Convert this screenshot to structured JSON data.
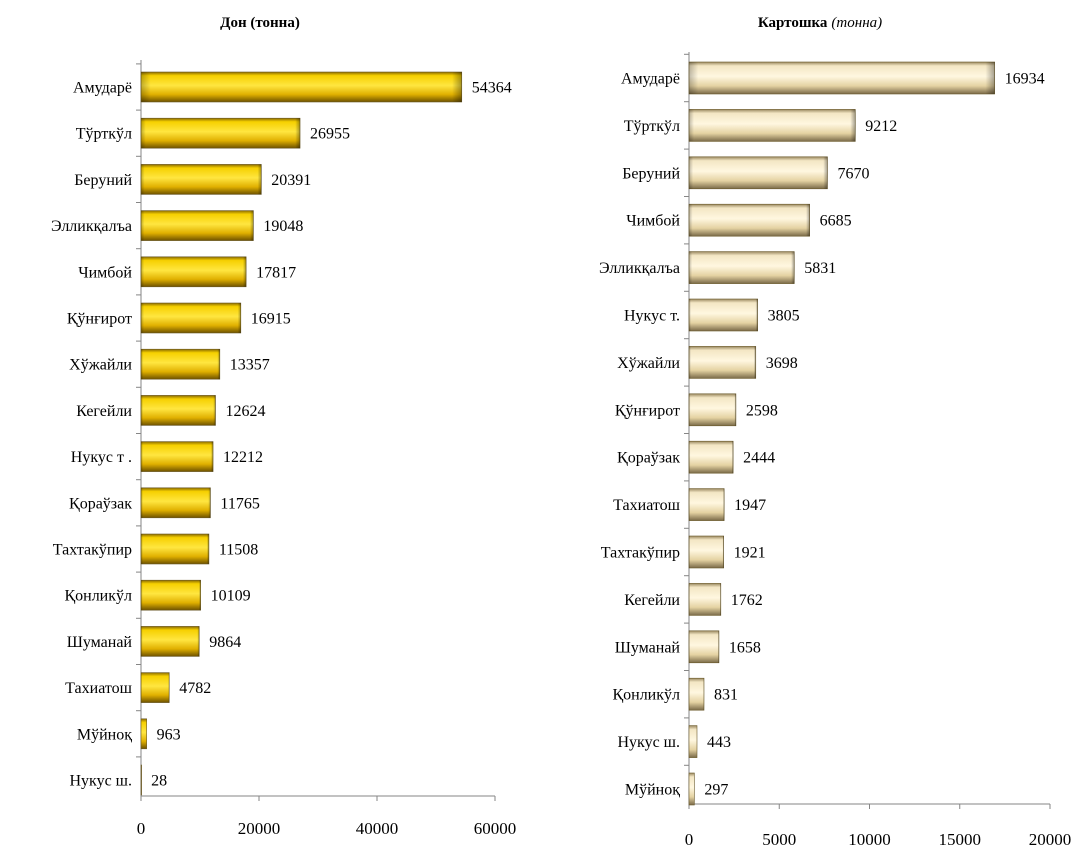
{
  "chart_data": [
    {
      "type": "bar",
      "orientation": "horizontal",
      "title": "Дон (тонна)",
      "title_main": "Дон (тонна)",
      "title_sub": "",
      "categories": [
        "Амударё",
        "Тўрткўл",
        "Беруний",
        "Элликқалъа",
        "Чимбой",
        "Қўнғирот",
        "Хўжайли",
        "Кегейли",
        "Нукус т .",
        "Қораўзак",
        "Тахтакўпир",
        "Қонликўл",
        "Шуманай",
        "Тахиатош",
        "Мўйноқ",
        "Нукус ш."
      ],
      "values": [
        54364,
        26955,
        20391,
        19048,
        17817,
        16915,
        13357,
        12624,
        12212,
        11765,
        11508,
        10109,
        9864,
        4782,
        963,
        28
      ],
      "xlim": [
        0,
        60000
      ],
      "ticks": [
        "0",
        "20000",
        "40000",
        "60000"
      ],
      "grid": false,
      "bar_color": "#f2c200"
    },
    {
      "type": "bar",
      "orientation": "horizontal",
      "title": "Картошка (тонна)",
      "title_main": "Картошка",
      "title_sub": "(тонна)",
      "categories": [
        "Амударё",
        "Тўрткўл",
        "Беруний",
        "Чимбой",
        "Элликқалъа",
        "Нукус т.",
        "Хўжайли",
        "Қўнғирот",
        "Қораўзак",
        "Тахиатош",
        "Тахтакўпир",
        "Кегейли",
        "Шуманай",
        "Қонликўл",
        "Нукус ш.",
        "Мўйноқ"
      ],
      "values": [
        16934,
        9212,
        7670,
        6685,
        5831,
        3805,
        3698,
        2598,
        2444,
        1947,
        1921,
        1762,
        1658,
        831,
        443,
        297
      ],
      "xlim": [
        0,
        20000
      ],
      "ticks": [
        "0",
        "5000",
        "10000",
        "15000",
        "20000"
      ],
      "grid": false,
      "bar_color": "#ecdcb4"
    }
  ]
}
